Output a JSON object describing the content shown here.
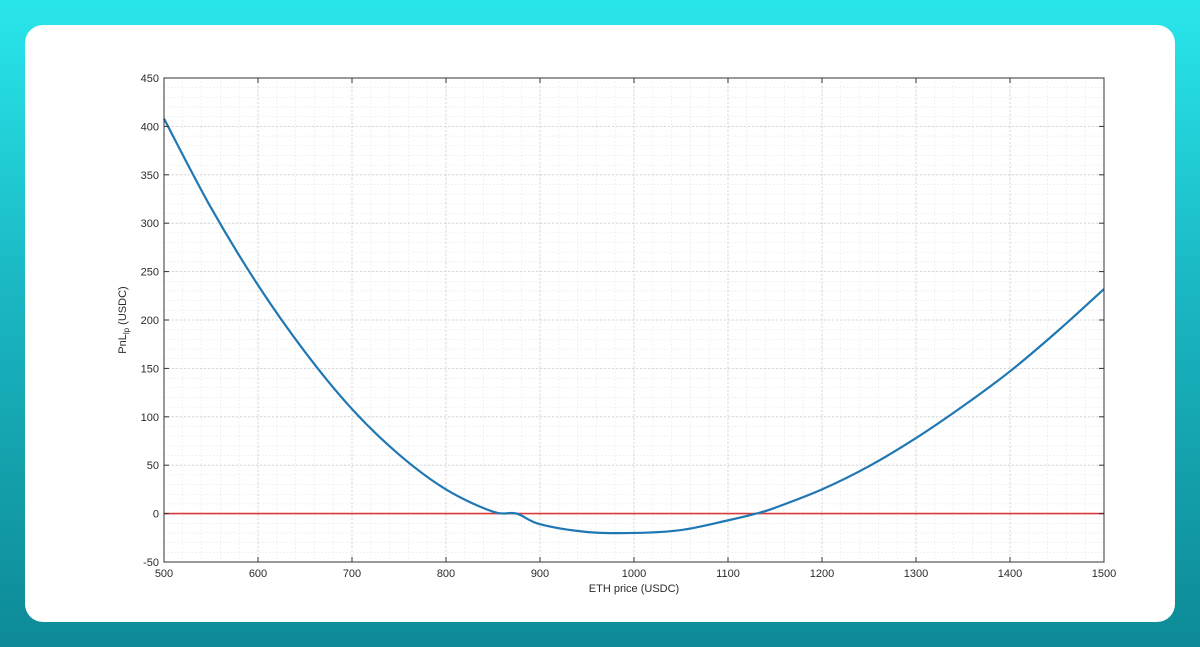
{
  "chart_data": {
    "type": "line",
    "xlabel": "ETH price (USDC)",
    "ylabel": {
      "main": "PnL",
      "sub": "lp",
      "units": " (USDC)"
    },
    "xlim": [
      500,
      1500
    ],
    "ylim": [
      -50,
      450
    ],
    "x_ticks": [
      500,
      600,
      700,
      800,
      900,
      1000,
      1100,
      1200,
      1300,
      1400,
      1500
    ],
    "y_ticks": [
      -50,
      0,
      50,
      100,
      150,
      200,
      250,
      300,
      350,
      400,
      450
    ],
    "grid": true,
    "minor_grid": true,
    "series": [
      {
        "color": "#1f77b4",
        "x": [
          500,
          550,
          600,
          650,
          700,
          750,
          800,
          850,
          875,
          900,
          950,
          1000,
          1050,
          1100,
          1130,
          1150,
          1200,
          1250,
          1300,
          1350,
          1400,
          1450,
          1500
        ],
        "y": [
          408,
          316,
          236,
          167,
          108,
          61,
          25,
          2,
          0,
          -11,
          -19,
          -20,
          -17,
          -7,
          0,
          6,
          25,
          49,
          78,
          111,
          147,
          188,
          232
        ]
      },
      {
        "color": "#d93b3b",
        "x": [
          500,
          1500
        ],
        "y": [
          0,
          0
        ]
      }
    ]
  }
}
